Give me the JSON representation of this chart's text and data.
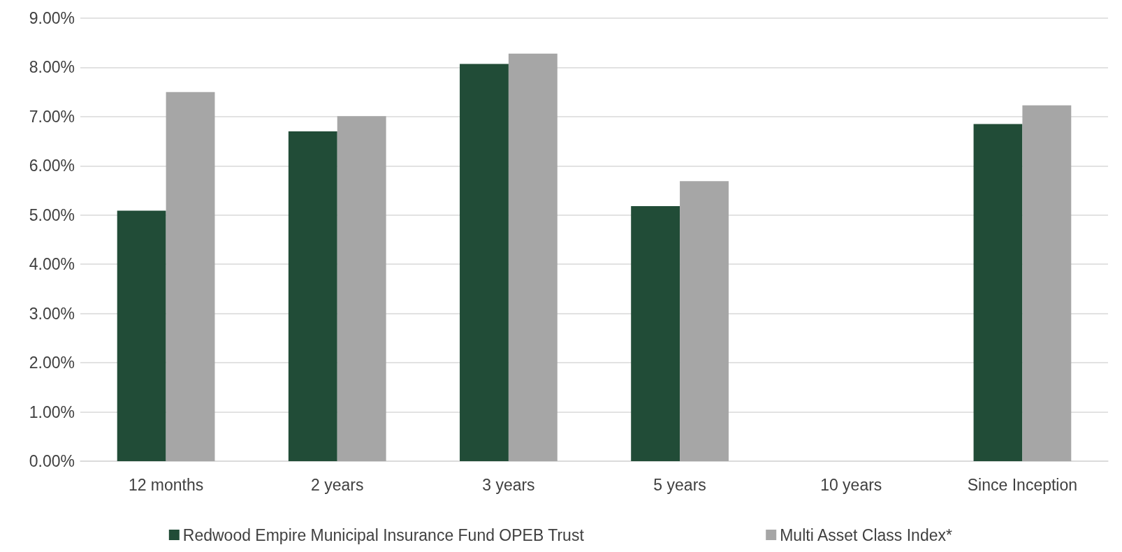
{
  "chart_data": {
    "type": "bar",
    "categories": [
      "12 months",
      "2 years",
      "3 years",
      "5 years",
      "10 years",
      "Since Inception"
    ],
    "series": [
      {
        "name": "Redwood Empire Municipal Insurance Fund OPEB Trust",
        "color": "#214c37",
        "values": [
          5.09,
          6.7,
          8.07,
          5.18,
          null,
          6.85
        ]
      },
      {
        "name": "Multi Asset Class Index*",
        "color": "#a6a6a6",
        "values": [
          7.5,
          7.01,
          8.28,
          5.69,
          null,
          7.23
        ]
      }
    ],
    "ylim": [
      0,
      9
    ],
    "yticks": [
      {
        "value": 0,
        "label": "0.00%"
      },
      {
        "value": 1,
        "label": "1.00%"
      },
      {
        "value": 2,
        "label": "2.00%"
      },
      {
        "value": 3,
        "label": "3.00%"
      },
      {
        "value": 4,
        "label": "4.00%"
      },
      {
        "value": 5,
        "label": "5.00%"
      },
      {
        "value": 6,
        "label": "6.00%"
      },
      {
        "value": 7,
        "label": "7.00%"
      },
      {
        "value": 8,
        "label": "8.00%"
      },
      {
        "value": 9,
        "label": "9.00%"
      }
    ],
    "grid": "y",
    "legend": "bottom"
  }
}
